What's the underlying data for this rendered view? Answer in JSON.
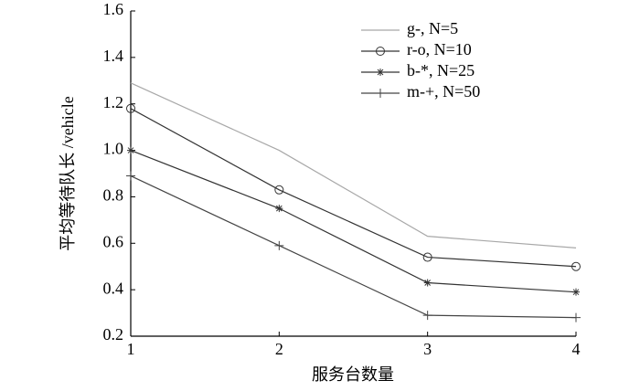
{
  "chart_data": {
    "type": "line",
    "x_label": "服务台数量",
    "y_label": "平均等待队长 /vehicle",
    "x": [
      1,
      2,
      3,
      4
    ],
    "xlim": [
      1,
      4
    ],
    "xticks": [
      1,
      2,
      3,
      4
    ],
    "ylim": [
      0.2,
      1.6
    ],
    "yticks": [
      0.2,
      0.4,
      0.6,
      0.8,
      {
        "value": 1,
        "label": "1.0"
      },
      1.2,
      1.4,
      1.6
    ],
    "legend": "upper right",
    "series": [
      {
        "name": "g-, N=5",
        "color": "#a8a8a8",
        "marker": "none",
        "values": [
          1.29,
          1.0,
          0.63,
          0.58
        ]
      },
      {
        "name": "r-o, N=10",
        "color": "#333333",
        "marker": "circle",
        "values": [
          1.18,
          0.83,
          0.54,
          0.5
        ]
      },
      {
        "name": "b-*, N=25",
        "color": "#333333",
        "marker": "star",
        "values": [
          1.0,
          0.75,
          0.43,
          0.39
        ]
      },
      {
        "name": "m-+, N=50",
        "color": "#444444",
        "marker": "plus",
        "values": [
          0.89,
          0.59,
          0.29,
          0.28
        ]
      }
    ]
  }
}
